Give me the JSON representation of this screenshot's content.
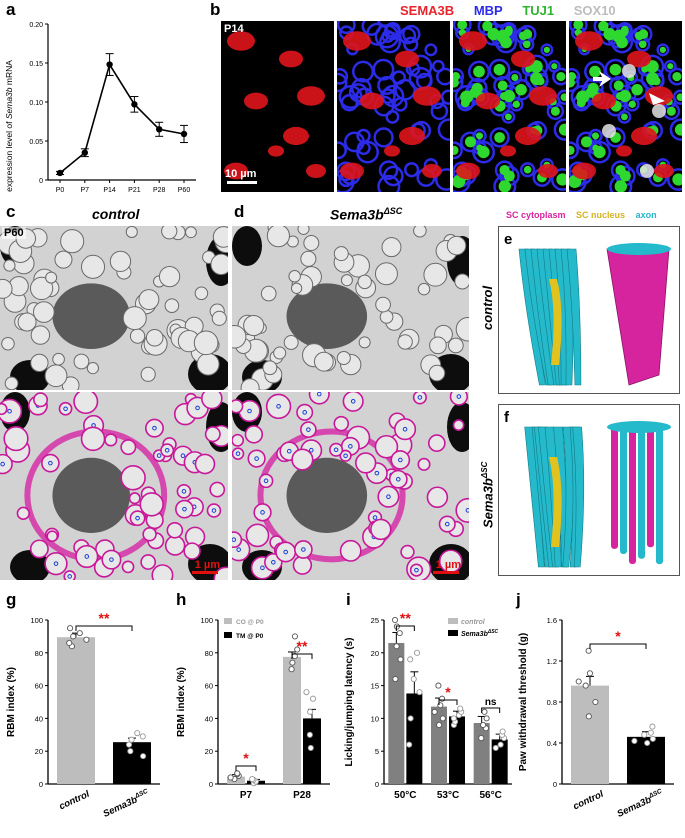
{
  "panels": {
    "a": {
      "letter": "a",
      "ylabel_pre": "expression level of ",
      "ylabel_gene": "Sema3b",
      "ylabel_post": " mRNA"
    },
    "b": {
      "letter": "b",
      "age": "P14",
      "channels": [
        "SEMA3B",
        "MBP",
        "TUJ1",
        "SOX10"
      ],
      "channel_colors": [
        "#e8252b",
        "#2b2be8",
        "#2fb52f",
        "#bdbdbd"
      ],
      "scale": "10 µm"
    },
    "c": {
      "letter": "c",
      "title": "control",
      "age": "P60",
      "scale": "1 µm"
    },
    "d": {
      "letter": "d",
      "title_gene": "Sema3b",
      "title_sup": "ΔSC",
      "scale": "1 µm"
    },
    "e": {
      "letter": "e",
      "side": "control"
    },
    "f": {
      "letter": "f",
      "side_gene": "Sema3b",
      "side_sup": "ΔSC"
    },
    "legend_ef": {
      "items": [
        "SC cytoplasm",
        "SC nucleus",
        "axon"
      ],
      "colors": [
        "#d6249f",
        "#d4b422",
        "#26b6c8"
      ]
    },
    "g": {
      "letter": "g",
      "sig": "**",
      "xlabels_1": "control",
      "xlabels_2_gene": "Sema3b",
      "xlabels_2_sup": "ΔSC"
    },
    "h": {
      "letter": "h",
      "sig1": "*",
      "sig2": "**"
    },
    "i": {
      "letter": "i",
      "sig1": "**",
      "sig2": "*",
      "sig3": "ns",
      "legend1": "control",
      "legend2_gene": "Sema3b",
      "legend2_sup": "ΔSC"
    },
    "j": {
      "letter": "j",
      "sig": "*",
      "xlabels_1": "control",
      "xlabels_2_gene": "Sema3b",
      "xlabels_2_sup": "ΔSC"
    }
  },
  "chart_data": [
    {
      "id": "a",
      "type": "line",
      "categories": [
        "P0",
        "P7",
        "P14",
        "P21",
        "P28",
        "P60"
      ],
      "values": [
        0.009,
        0.035,
        0.148,
        0.097,
        0.065,
        0.059
      ],
      "errors": [
        0.002,
        0.005,
        0.014,
        0.01,
        0.009,
        0.011
      ],
      "ylim": [
        0,
        0.2
      ],
      "yticks": [
        "0",
        "0.05",
        "0.10",
        "0.15",
        "0.20"
      ]
    },
    {
      "id": "g",
      "type": "bar",
      "ylabel": "RBM index (%)",
      "ylim": [
        0,
        100
      ],
      "yticks": [
        "0",
        "20",
        "40",
        "60",
        "80",
        "100"
      ],
      "categories": [
        "control",
        "Sema3bΔSC"
      ],
      "values": [
        89.5,
        25.5
      ],
      "errors": [
        2.5,
        2.5
      ],
      "colors": [
        "#bdbdbd",
        "#000000"
      ],
      "points": [
        [
          84,
          86,
          88,
          90,
          92,
          95
        ],
        [
          17,
          20,
          24,
          27,
          29,
          31
        ]
      ]
    },
    {
      "id": "h",
      "type": "bar",
      "ylabel": "RBM index (%)",
      "ylim": [
        0,
        100
      ],
      "yticks": [
        "0",
        "20",
        "40",
        "60",
        "80",
        "100"
      ],
      "categories": [
        "P7",
        "P28"
      ],
      "series": [
        {
          "name": "CO @ P0",
          "values": [
            4.5,
            77.5
          ],
          "errors": [
            1.2,
            3
          ],
          "color": "#bdbdbd",
          "points": [
            [
              3,
              4,
              5,
              6,
              6.5
            ],
            [
              70,
              74,
              78,
              82,
              90
            ]
          ]
        },
        {
          "name": "TM @ P0",
          "values": [
            2.0,
            40
          ],
          "errors": [
            0.8,
            5.5
          ],
          "color": "#000000",
          "points": [
            [
              0.5,
              1.5,
              2.5,
              3
            ],
            [
              22,
              30,
              44,
              52,
              56
            ]
          ]
        }
      ]
    },
    {
      "id": "i",
      "type": "bar",
      "ylabel": "Licking/jumping latency (s)",
      "ylim": [
        0,
        25
      ],
      "yticks": [
        "0",
        "5",
        "10",
        "15",
        "20",
        "25"
      ],
      "categories": [
        "50°C",
        "53°C",
        "56°C"
      ],
      "series": [
        {
          "name": "control",
          "values": [
            21.5,
            11.8,
            9.3
          ],
          "errors": [
            1.6,
            1.3,
            1.0
          ],
          "color": "#808080",
          "points": [
            [
              16,
              19,
              21,
              23,
              24,
              25
            ],
            [
              9,
              10,
              11,
              12,
              13,
              15
            ],
            [
              7,
              8.5,
              9,
              10,
              11
            ]
          ]
        },
        {
          "name": "Sema3bΔSC",
          "values": [
            13.8,
            10.3,
            6.8
          ],
          "errors": [
            3.3,
            0.8,
            0.8
          ],
          "color": "#000000",
          "points": [
            [
              6,
              10,
              14,
              16,
              19,
              20
            ],
            [
              9,
              9.5,
              10,
              10.5,
              11,
              11.5
            ],
            [
              5.5,
              6,
              7,
              7.5,
              8
            ]
          ]
        }
      ]
    },
    {
      "id": "j",
      "type": "bar",
      "ylabel": "Paw withdrawal threshold (g)",
      "ylim": [
        0,
        1.6
      ],
      "yticks": [
        "0",
        "0.4",
        "0.8",
        "1.2",
        "1.6"
      ],
      "categories": [
        "control",
        "Sema3bΔSC"
      ],
      "values": [
        0.96,
        0.46
      ],
      "errors": [
        0.09,
        0.05
      ],
      "colors": [
        "#bdbdbd",
        "#000000"
      ],
      "points": [
        [
          0.66,
          0.8,
          0.96,
          1.0,
          1.08,
          1.3
        ],
        [
          0.4,
          0.42,
          0.44,
          0.48,
          0.5,
          0.56
        ]
      ]
    }
  ]
}
